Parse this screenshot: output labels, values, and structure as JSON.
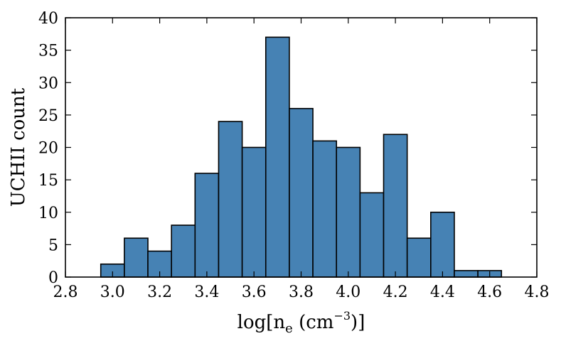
{
  "chart_data": {
    "type": "bar",
    "title": "",
    "xlabel": "log[n",
    "xlabel_sub": "e",
    "xlabel_mid": " (cm",
    "xlabel_sup": "−3",
    "xlabel_end": ")]",
    "ylabel": "UCHII count",
    "xlim": [
      2.8,
      4.8
    ],
    "ylim": [
      0,
      40
    ],
    "x_ticks": [
      "2.8",
      "3.0",
      "3.2",
      "3.4",
      "3.6",
      "3.8",
      "4.0",
      "4.2",
      "4.4",
      "4.6",
      "4.8"
    ],
    "y_ticks": [
      "0",
      "5",
      "10",
      "15",
      "20",
      "25",
      "30",
      "35",
      "40"
    ],
    "bin_edges": [
      2.95,
      3.05,
      3.15,
      3.25,
      3.35,
      3.45,
      3.55,
      3.65,
      3.75,
      3.85,
      3.95,
      4.05,
      4.15,
      4.25,
      4.35,
      4.45,
      4.55,
      4.65
    ],
    "values": [
      2,
      6,
      4,
      8,
      16,
      24,
      20,
      37,
      26,
      21,
      20,
      13,
      22,
      6,
      10,
      1,
      1
    ],
    "bar_color": "#4682b4",
    "edge_color": "#000000",
    "grid": false
  }
}
